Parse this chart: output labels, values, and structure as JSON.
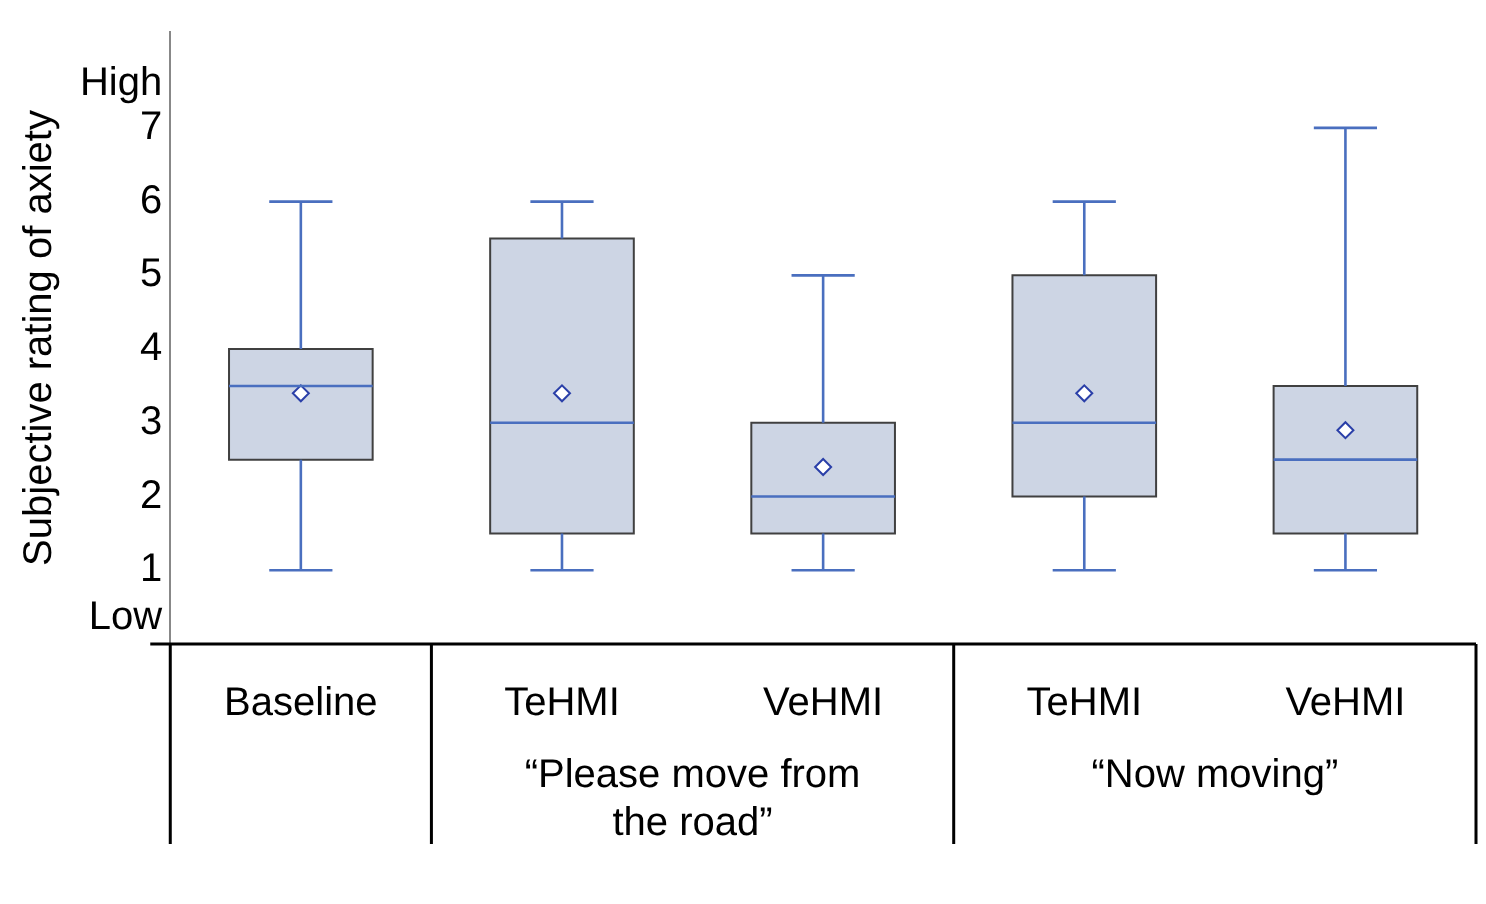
{
  "chart_data": {
    "type": "box",
    "ylabel": "Subjective rating of axiety",
    "categories": [
      "Baseline",
      "TeHMI",
      "VeHMI",
      "TeHMI",
      "VeHMI"
    ],
    "boxes": [
      {
        "low": 1,
        "q1": 2.5,
        "median": 3.5,
        "q3": 4,
        "high": 6,
        "mean": 3.4
      },
      {
        "low": 1,
        "q1": 1.5,
        "median": 3,
        "q3": 5.5,
        "high": 6,
        "mean": 3.4
      },
      {
        "low": 1,
        "q1": 1.5,
        "median": 2,
        "q3": 3,
        "high": 5,
        "mean": 2.4
      },
      {
        "low": 1,
        "q1": 2,
        "median": 3,
        "q3": 5,
        "high": 6,
        "mean": 3.4
      },
      {
        "low": 1,
        "q1": 1.5,
        "median": 2.5,
        "q3": 3.5,
        "high": 7,
        "mean": 2.9
      }
    ],
    "color": "#cdd5e4",
    "ylim": [
      0,
      8.3
    ],
    "yticks": [
      {
        "value": 0.35,
        "label": "Low"
      },
      1,
      2,
      3,
      4,
      5,
      6,
      7,
      {
        "value": 7.6,
        "label": "High"
      }
    ],
    "annotations": [
      "“Please move from the road”",
      "“Now moving”"
    ],
    "grid": false,
    "legend": false,
    "marker": "diamond"
  }
}
